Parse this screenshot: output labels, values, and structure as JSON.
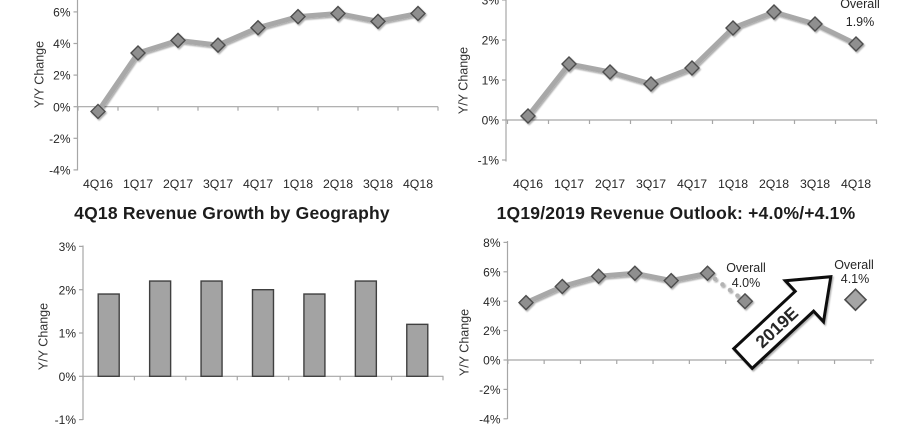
{
  "page": {
    "background": "#ffffff"
  },
  "colors": {
    "axis": "#a6a6a6",
    "line": "#a8a8a8",
    "marker_fill": "#8f8f8f",
    "marker_stroke": "#4d4d4d",
    "bar_fill": "#a3a3a3",
    "bar_stroke": "#404040",
    "dot": "#b3b3b3",
    "text": "#262626",
    "arrow_fill": "#ffffff",
    "arrow_stroke": "#111111"
  },
  "chart_data": [
    {
      "name": "quarterly-revenue-growth-line",
      "type": "line",
      "ylabel": "Y/Y Change",
      "categories": [
        "4Q16",
        "1Q17",
        "2Q17",
        "3Q17",
        "4Q17",
        "1Q18",
        "2Q18",
        "3Q18",
        "4Q18"
      ],
      "values": [
        -0.3,
        3.4,
        4.2,
        3.9,
        5.0,
        5.7,
        5.9,
        5.4,
        5.9
      ],
      "yticks": [
        6,
        4,
        2,
        0,
        -2,
        -4
      ],
      "ylim_visible": [
        -4,
        6
      ],
      "grid": false,
      "crop_hint": "top of chart cropped by screenshot edge"
    },
    {
      "name": "quarterly-growth-overall-line",
      "type": "line",
      "ylabel": "Y/Y Change",
      "categories": [
        "4Q16",
        "1Q17",
        "2Q17",
        "3Q17",
        "4Q17",
        "1Q18",
        "2Q18",
        "3Q18",
        "4Q18"
      ],
      "values": [
        0.1,
        1.4,
        1.2,
        0.9,
        1.3,
        2.3,
        2.7,
        2.4,
        1.9
      ],
      "yticks": [
        3,
        2,
        1,
        0,
        -1
      ],
      "ylim_visible": [
        -1,
        3
      ],
      "grid": false,
      "annotation": {
        "label": "Overall",
        "value_label": "1.9%"
      }
    },
    {
      "name": "4q18-revenue-growth-by-geography-bars",
      "type": "bar",
      "title": "4Q18 Revenue Growth by Geography",
      "ylabel": "Y/Y Change",
      "categories": [],
      "values": [
        1.9,
        2.2,
        2.2,
        2.0,
        1.9,
        2.2,
        1.2
      ],
      "yticks": [
        3,
        2,
        1,
        0,
        -1
      ],
      "ylim_visible": [
        -1,
        3
      ],
      "grid": false,
      "crop_hint": "bar category labels cropped by bottom screenshot edge"
    },
    {
      "name": "revenue-outlook-line",
      "type": "line",
      "title": "1Q19/2019 Revenue Outlook: +4.0%/+4.1%",
      "ylabel": "Y/Y Change",
      "categories": [],
      "values": [
        3.9,
        5.0,
        5.7,
        5.9,
        5.4,
        5.9
      ],
      "yticks": [
        8,
        6,
        4,
        2,
        0,
        -2,
        -4
      ],
      "ylim_visible": [
        -4,
        8
      ],
      "grid": false,
      "forecast": {
        "label": "Overall",
        "value_label": "4.0%",
        "value": 4.0
      },
      "estimate": {
        "label": "Overall",
        "value_label": "4.1%",
        "value": 4.1
      },
      "arrow_label": "2019E",
      "crop_hint": "x-axis labels cropped by bottom screenshot edge"
    }
  ]
}
